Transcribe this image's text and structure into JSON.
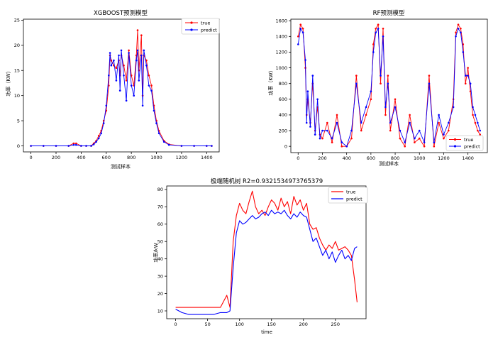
{
  "colors": {
    "true": "#ff0000",
    "predict": "#0000ff"
  },
  "chart_data": [
    {
      "type": "line",
      "title": "XGBOOST预测模型",
      "xlabel": "测试样本",
      "ylabel": "功率（KW）",
      "xlim": [
        -60,
        1500
      ],
      "ylim": [
        -1.2,
        25.2
      ],
      "xticks": [
        0,
        200,
        400,
        600,
        800,
        1000,
        1200,
        1400
      ],
      "yticks": [
        0,
        5,
        10,
        15,
        20,
        25
      ],
      "legend_position": "top-right",
      "markers": true,
      "series": [
        {
          "name": "true",
          "color": "#ff0000",
          "x": [
            0,
            100,
            200,
            300,
            340,
            360,
            400,
            440,
            480,
            500,
            520,
            540,
            560,
            580,
            600,
            620,
            630,
            640,
            660,
            680,
            700,
            710,
            720,
            740,
            760,
            780,
            800,
            820,
            840,
            850,
            860,
            880,
            890,
            900,
            920,
            940,
            960,
            980,
            1000,
            1020,
            1060,
            1100,
            1200,
            1300,
            1400,
            1440
          ],
          "y": [
            0,
            0,
            0,
            0,
            0.5,
            0.5,
            0,
            0,
            0,
            0.5,
            1,
            2,
            3,
            5,
            7,
            12,
            18,
            17,
            16,
            15.5,
            17,
            14,
            18,
            16,
            13,
            19,
            14,
            12,
            18,
            23,
            15,
            22,
            10,
            18,
            17,
            14,
            12,
            8,
            5,
            3,
            1,
            0.3,
            0,
            0,
            0,
            0
          ]
        },
        {
          "name": "predict",
          "color": "#0000ff",
          "x": [
            0,
            100,
            200,
            300,
            340,
            360,
            400,
            440,
            480,
            500,
            520,
            540,
            560,
            580,
            600,
            620,
            630,
            640,
            660,
            680,
            700,
            710,
            720,
            740,
            760,
            780,
            800,
            820,
            840,
            850,
            860,
            880,
            890,
            900,
            920,
            940,
            960,
            980,
            1000,
            1020,
            1060,
            1100,
            1200,
            1300,
            1400,
            1440
          ],
          "y": [
            0,
            0,
            0,
            0,
            0.2,
            0.2,
            0,
            0,
            0,
            0.3,
            0.8,
            1.5,
            2.5,
            4.5,
            8,
            14,
            18.5,
            16,
            17,
            13,
            18,
            11,
            19,
            14,
            9,
            18.5,
            12,
            10,
            17,
            19,
            13,
            18,
            8,
            19,
            16,
            12,
            11,
            7,
            4.5,
            2.5,
            0.8,
            0.2,
            0,
            0,
            0,
            0
          ]
        }
      ]
    },
    {
      "type": "line",
      "title": "RF预测模型",
      "xlabel": "测试样本",
      "ylabel": "功率（KW）",
      "xlim": [
        -60,
        1560
      ],
      "ylim": [
        -80,
        1620
      ],
      "xticks": [
        0,
        200,
        400,
        600,
        800,
        1000,
        1200,
        1400
      ],
      "yticks": [
        0,
        200,
        400,
        600,
        800,
        1000,
        1200,
        1400,
        1600
      ],
      "legend_position": "bottom-right",
      "markers": true,
      "series": [
        {
          "name": "true",
          "color": "#ff0000",
          "x": [
            0,
            20,
            40,
            60,
            70,
            80,
            100,
            120,
            140,
            160,
            180,
            200,
            240,
            280,
            320,
            360,
            400,
            440,
            480,
            520,
            560,
            600,
            620,
            640,
            660,
            680,
            700,
            720,
            740,
            760,
            800,
            840,
            880,
            920,
            960,
            1000,
            1040,
            1080,
            1120,
            1160,
            1200,
            1240,
            1280,
            1300,
            1320,
            1340,
            1360,
            1380,
            1400,
            1420,
            1440,
            1460,
            1480,
            1500
          ],
          "y": [
            1400,
            1550,
            1500,
            1000,
            400,
            600,
            300,
            800,
            200,
            500,
            150,
            100,
            300,
            50,
            400,
            0,
            0,
            100,
            900,
            200,
            400,
            600,
            1300,
            1500,
            1550,
            800,
            1500,
            400,
            900,
            200,
            600,
            100,
            0,
            400,
            50,
            100,
            0,
            900,
            0,
            300,
            100,
            200,
            600,
            1450,
            1550,
            1500,
            1300,
            800,
            1000,
            700,
            400,
            300,
            200,
            150
          ]
        },
        {
          "name": "predict",
          "color": "#0000ff",
          "x": [
            0,
            20,
            40,
            60,
            70,
            80,
            100,
            120,
            140,
            160,
            180,
            200,
            240,
            280,
            320,
            360,
            400,
            440,
            480,
            520,
            560,
            600,
            620,
            640,
            660,
            680,
            700,
            720,
            740,
            760,
            800,
            840,
            880,
            920,
            960,
            1000,
            1040,
            1080,
            1120,
            1160,
            1200,
            1240,
            1280,
            1300,
            1320,
            1340,
            1360,
            1380,
            1400,
            1420,
            1440,
            1460,
            1480,
            1500
          ],
          "y": [
            1300,
            1500,
            1450,
            1100,
            300,
            700,
            250,
            900,
            150,
            600,
            100,
            200,
            200,
            100,
            300,
            50,
            0,
            200,
            800,
            300,
            500,
            700,
            1200,
            1450,
            1500,
            900,
            1400,
            500,
            800,
            300,
            500,
            200,
            50,
            300,
            100,
            200,
            50,
            800,
            50,
            400,
            150,
            300,
            500,
            1400,
            1500,
            1450,
            1200,
            900,
            900,
            800,
            500,
            400,
            300,
            200
          ]
        }
      ]
    },
    {
      "type": "line",
      "title": "极端随机树 R2=0.9321534973765379",
      "xlabel": "time",
      "ylabel": "功率/kW",
      "xlim": [
        -14,
        298
      ],
      "ylim": [
        5.5,
        82
      ],
      "xticks": [
        0,
        50,
        100,
        150,
        200,
        250
      ],
      "yticks": [
        10,
        20,
        30,
        40,
        50,
        60,
        70,
        80
      ],
      "legend_position": "top-right",
      "markers": false,
      "series": [
        {
          "name": "true",
          "color": "#ff0000",
          "x": [
            0,
            10,
            20,
            30,
            40,
            50,
            60,
            70,
            80,
            85,
            90,
            95,
            100,
            105,
            110,
            115,
            120,
            125,
            130,
            135,
            140,
            145,
            150,
            155,
            160,
            165,
            170,
            175,
            180,
            185,
            190,
            195,
            200,
            205,
            210,
            215,
            220,
            225,
            230,
            235,
            240,
            245,
            250,
            255,
            260,
            265,
            270,
            275,
            280,
            284
          ],
          "y": [
            12,
            12,
            12,
            12,
            12,
            12,
            12,
            12,
            19,
            12,
            50,
            65,
            72,
            68,
            66,
            73,
            79,
            70,
            66,
            68,
            65,
            70,
            74,
            72,
            68,
            75,
            70,
            73,
            66,
            76,
            71,
            74,
            68,
            72,
            60,
            57,
            58,
            52,
            48,
            45,
            48,
            46,
            50,
            45,
            46,
            47,
            45,
            42,
            28,
            15
          ]
        },
        {
          "name": "predict",
          "color": "#0000ff",
          "x": [
            0,
            10,
            20,
            30,
            40,
            50,
            60,
            70,
            80,
            85,
            90,
            95,
            100,
            105,
            110,
            115,
            120,
            125,
            130,
            135,
            140,
            145,
            150,
            155,
            160,
            165,
            170,
            175,
            180,
            185,
            190,
            195,
            200,
            205,
            210,
            215,
            220,
            225,
            230,
            235,
            240,
            245,
            250,
            255,
            260,
            265,
            270,
            275,
            280,
            284
          ],
          "y": [
            11,
            9,
            8,
            8,
            8,
            8,
            8,
            9,
            9,
            10,
            35,
            55,
            62,
            60,
            61,
            63,
            65,
            63,
            64,
            66,
            67,
            65,
            68,
            66,
            67,
            66,
            68,
            65,
            63,
            66,
            64,
            67,
            65,
            64,
            57,
            50,
            52,
            47,
            42,
            45,
            40,
            44,
            38,
            42,
            45,
            40,
            42,
            39,
            46,
            47
          ]
        }
      ]
    }
  ]
}
